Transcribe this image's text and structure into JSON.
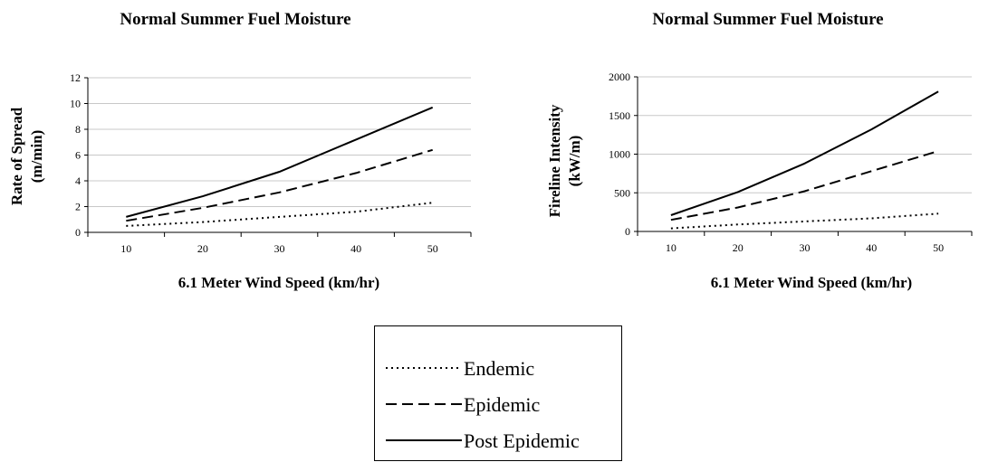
{
  "chart_data": [
    {
      "type": "line",
      "title": "Normal Summer Fuel Moisture",
      "xlabel": "6.1 Meter Wind Speed (km/hr)",
      "ylabel_lines": [
        "Rate of Spread",
        "(m/min)"
      ],
      "x": [
        10,
        20,
        30,
        40,
        50
      ],
      "xticks": [
        "10",
        "20",
        "30",
        "40",
        "50"
      ],
      "xlim": [
        5,
        55
      ],
      "ylim": [
        0,
        12
      ],
      "yticks": [
        "0",
        "2",
        "4",
        "6",
        "8",
        "10",
        "12"
      ],
      "grid": true,
      "series": [
        {
          "name": "Endemic",
          "style": "dotted",
          "values": [
            0.5,
            0.8,
            1.2,
            1.6,
            2.3
          ]
        },
        {
          "name": "Epidemic",
          "style": "dashed",
          "values": [
            0.9,
            1.9,
            3.1,
            4.6,
            6.4
          ]
        },
        {
          "name": "Post Epidemic",
          "style": "solid",
          "values": [
            1.2,
            2.8,
            4.7,
            7.2,
            9.7
          ]
        }
      ]
    },
    {
      "type": "line",
      "title": "Normal Summer Fuel Moisture",
      "xlabel": "6.1 Meter Wind Speed (km/hr)",
      "ylabel_lines": [
        "Fireline Intensity",
        "(kW/m)"
      ],
      "x": [
        10,
        20,
        30,
        40,
        50
      ],
      "xticks": [
        "10",
        "20",
        "30",
        "40",
        "50"
      ],
      "xlim": [
        5,
        55
      ],
      "ylim": [
        0,
        2000
      ],
      "yticks": [
        "0",
        "500",
        "1000",
        "1500",
        "2000"
      ],
      "grid": true,
      "series": [
        {
          "name": "Endemic",
          "style": "dotted",
          "values": [
            40,
            90,
            130,
            170,
            230
          ]
        },
        {
          "name": "Epidemic",
          "style": "dashed",
          "values": [
            150,
            310,
            520,
            780,
            1040
          ]
        },
        {
          "name": "Post Epidemic",
          "style": "solid",
          "values": [
            210,
            510,
            880,
            1320,
            1810
          ]
        }
      ]
    }
  ],
  "legend": {
    "placement": "bottom-center",
    "items": [
      {
        "label": "Endemic",
        "style": "dotted"
      },
      {
        "label": "Epidemic",
        "style": "dashed"
      },
      {
        "label": "Post Epidemic",
        "style": "solid"
      }
    ]
  }
}
